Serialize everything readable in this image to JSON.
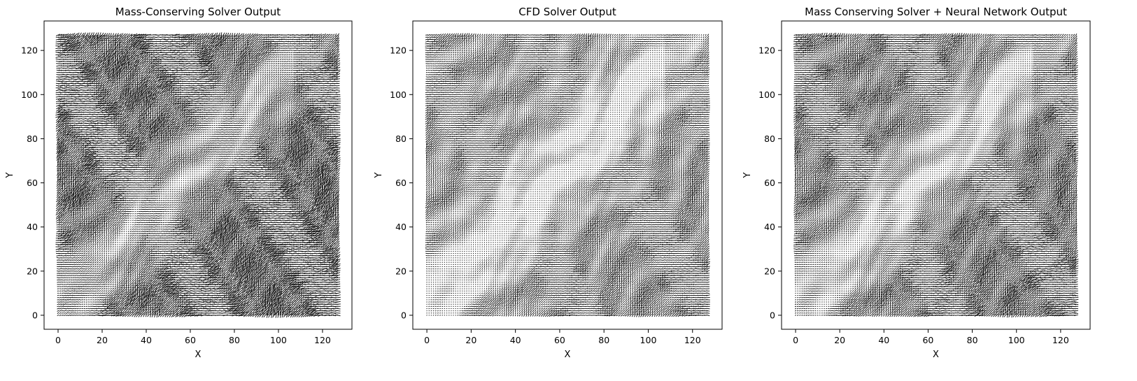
{
  "figure": {
    "colors": {
      "background": "#ffffff",
      "arrows": "#000000",
      "axes": "#000000"
    }
  },
  "chart_data": [
    {
      "type": "quiver",
      "title": "Mass-Conserving Solver Output",
      "xlabel": "X",
      "ylabel": "Y",
      "xlim": [
        -6.35,
        133.35
      ],
      "ylim": [
        -6.35,
        133.35
      ],
      "grid_size": [
        128,
        128
      ],
      "xticks": [
        0,
        20,
        40,
        60,
        80,
        100,
        120
      ],
      "yticks": [
        0,
        20,
        40,
        60,
        80,
        100,
        120
      ],
      "grid": false,
      "arrow_density": "dense"
    },
    {
      "type": "quiver",
      "title": "CFD Solver Output",
      "xlabel": "X",
      "ylabel": "Y",
      "xlim": [
        -6.35,
        133.35
      ],
      "ylim": [
        -6.35,
        133.35
      ],
      "grid_size": [
        128,
        128
      ],
      "xticks": [
        0,
        20,
        40,
        60,
        80,
        100,
        120
      ],
      "yticks": [
        0,
        20,
        40,
        60,
        80,
        100,
        120
      ],
      "grid": false,
      "arrow_density": "light"
    },
    {
      "type": "quiver",
      "title": "Mass Conserving Solver + Neural Network Output",
      "xlabel": "X",
      "ylabel": "Y",
      "xlim": [
        -6.35,
        133.35
      ],
      "ylim": [
        -6.35,
        133.35
      ],
      "grid_size": [
        128,
        128
      ],
      "xticks": [
        0,
        20,
        40,
        60,
        80,
        100,
        120
      ],
      "yticks": [
        0,
        20,
        40,
        60,
        80,
        100,
        120
      ],
      "grid": false,
      "arrow_density": "medium"
    }
  ]
}
